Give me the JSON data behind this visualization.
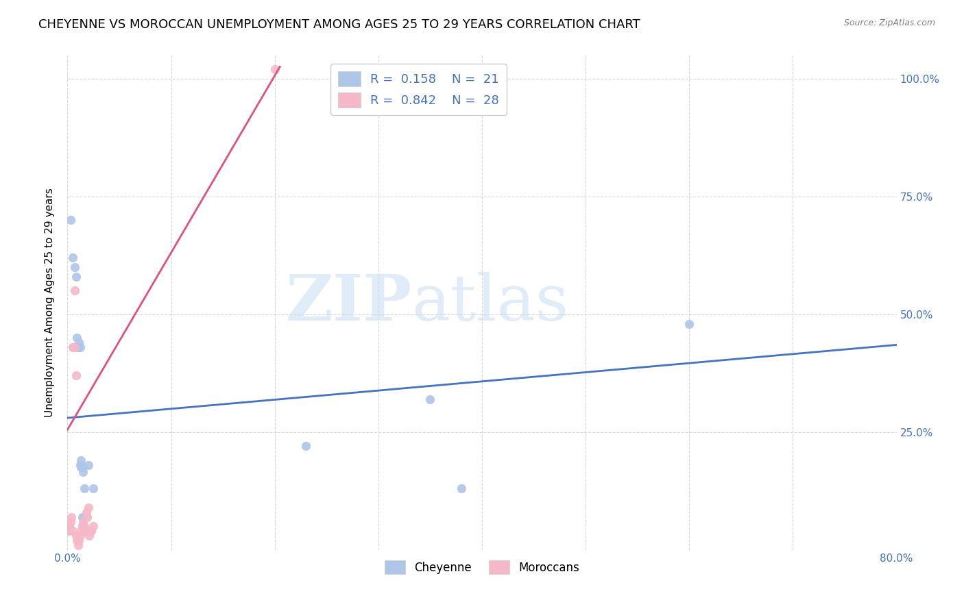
{
  "title": "CHEYENNE VS MOROCCAN UNEMPLOYMENT AMONG AGES 25 TO 29 YEARS CORRELATION CHART",
  "source": "Source: ZipAtlas.com",
  "ylabel": "Unemployment Among Ages 25 to 29 years",
  "xlim": [
    0.0,
    0.8
  ],
  "ylim": [
    0.0,
    1.05
  ],
  "xticks": [
    0.0,
    0.1,
    0.2,
    0.3,
    0.4,
    0.5,
    0.6,
    0.7,
    0.8
  ],
  "xticklabels": [
    "0.0%",
    "",
    "",
    "",
    "",
    "",
    "",
    "",
    "80.0%"
  ],
  "yticks": [
    0.0,
    0.25,
    0.5,
    0.75,
    1.0
  ],
  "yticklabels": [
    "",
    "25.0%",
    "50.0%",
    "75.0%",
    "100.0%"
  ],
  "cheyenne_x": [
    0.003,
    0.005,
    0.007,
    0.008,
    0.009,
    0.01,
    0.011,
    0.012,
    0.013,
    0.015,
    0.02,
    0.025,
    0.012,
    0.013,
    0.015,
    0.23,
    0.35,
    0.6,
    0.38,
    0.014,
    0.016
  ],
  "cheyenne_y": [
    0.7,
    0.62,
    0.6,
    0.58,
    0.45,
    0.43,
    0.44,
    0.43,
    0.175,
    0.175,
    0.18,
    0.13,
    0.18,
    0.19,
    0.165,
    0.22,
    0.32,
    0.48,
    0.13,
    0.07,
    0.13
  ],
  "moroccan_x": [
    0.001,
    0.002,
    0.003,
    0.004,
    0.005,
    0.005,
    0.006,
    0.007,
    0.007,
    0.008,
    0.008,
    0.009,
    0.01,
    0.011,
    0.012,
    0.013,
    0.014,
    0.015,
    0.016,
    0.017,
    0.018,
    0.019,
    0.02,
    0.021,
    0.022,
    0.023,
    0.025,
    0.2
  ],
  "moroccan_y": [
    0.04,
    0.05,
    0.06,
    0.07,
    0.04,
    0.43,
    0.43,
    0.43,
    0.55,
    0.37,
    0.03,
    0.02,
    0.01,
    0.02,
    0.03,
    0.04,
    0.05,
    0.06,
    0.05,
    0.04,
    0.08,
    0.07,
    0.09,
    0.03,
    0.04,
    0.04,
    0.05,
    1.02
  ],
  "cheyenne_color": "#aec6e8",
  "moroccan_color": "#f4b8c8",
  "cheyenne_line_color": "#4472c4",
  "moroccan_line_color": "#e05080",
  "legend_r_cheyenne": "0.158",
  "legend_n_cheyenne": "21",
  "legend_r_moroccan": "0.842",
  "legend_n_moroccan": "28",
  "watermark_zip": "ZIP",
  "watermark_atlas": "atlas",
  "background_color": "#ffffff",
  "grid_color": "#d8d8d8",
  "title_fontsize": 13,
  "axis_label_fontsize": 11,
  "tick_fontsize": 11,
  "marker_size": 80,
  "cheyenne_line_start_y": 0.28,
  "cheyenne_line_end_y": 0.435,
  "moroccan_line_x0": 0.0,
  "moroccan_line_y0": 0.255,
  "moroccan_line_x1": 0.205,
  "moroccan_line_y1": 1.025
}
